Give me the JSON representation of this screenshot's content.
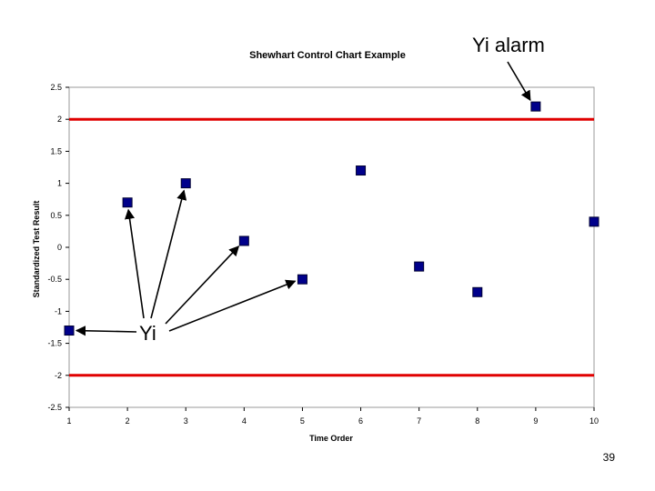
{
  "chart_data": {
    "type": "scatter",
    "title": "Shewhart Control Chart Example",
    "xlabel": "Time Order",
    "ylabel": "Standardized Test Result",
    "xlim": [
      1,
      10
    ],
    "ylim": [
      -2.5,
      2.5
    ],
    "x_ticks": [
      "1",
      "2",
      "3",
      "4",
      "5",
      "6",
      "7",
      "8",
      "9",
      "10"
    ],
    "y_ticks": [
      "2.5",
      "2",
      "1.5",
      "1",
      "0.5",
      "0",
      "-0.5",
      "-1",
      "-1.5",
      "-2",
      "-2.5"
    ],
    "series": [
      {
        "x": [
          1,
          2,
          3,
          4,
          5,
          6,
          7,
          8,
          9,
          10
        ],
        "y": [
          -1.3,
          0.7,
          1.0,
          0.1,
          -0.5,
          1.2,
          -0.3,
          -0.7,
          2.2,
          0.4
        ],
        "color": "#00008b"
      }
    ],
    "control_limits": [
      2,
      -2
    ],
    "control_limit_color": "#e00000",
    "grid": false,
    "annotations": {
      "yi_label": "Yi",
      "alarm_label": "Yi alarm"
    }
  },
  "page_number": "39"
}
